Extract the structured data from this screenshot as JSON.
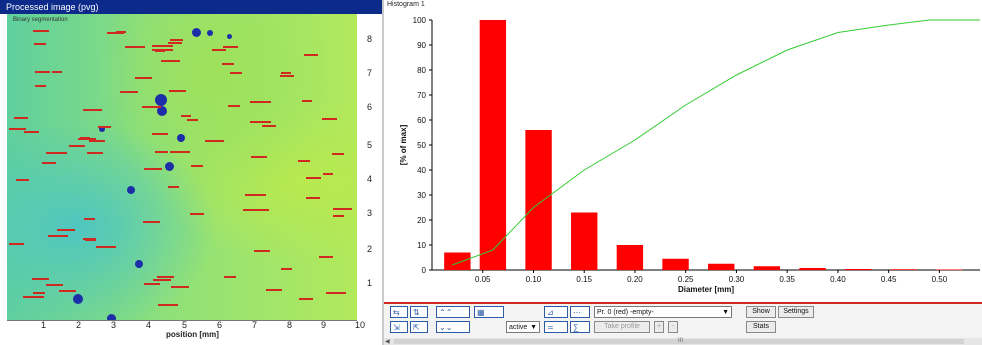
{
  "left_panel": {
    "title": "Processed image (pvg)",
    "note": "Binary segmentation",
    "x_axis_label": "position [mm]",
    "x_ticks": [
      "1",
      "2",
      "3",
      "4",
      "5",
      "6",
      "7",
      "8",
      "9",
      "10"
    ],
    "y_ticks": [
      "8",
      "7",
      "6",
      "5",
      "4",
      "3",
      "2",
      "1"
    ]
  },
  "histogram": {
    "title": "Histogram 1"
  },
  "chart_data": {
    "type": "bar",
    "title": "",
    "xlabel": "Diameter [mm]",
    "ylabel": "[% of max]",
    "ylim": [
      0,
      100
    ],
    "xlim": [
      0,
      0.54
    ],
    "grid": false,
    "x_ticks": [
      "0.05",
      "0.10",
      "0.15",
      "0.20",
      "0.25",
      "0.30",
      "0.35",
      "0.40",
      "0.45",
      "0.50"
    ],
    "y_ticks": [
      "0",
      "10",
      "20",
      "30",
      "40",
      "50",
      "60",
      "70",
      "80",
      "90",
      "100"
    ],
    "bar_color": "#ff0000",
    "curve_color": "#33cc33",
    "bars": [
      {
        "x": 0.025,
        "value": 7
      },
      {
        "x": 0.06,
        "value": 100
      },
      {
        "x": 0.105,
        "value": 56
      },
      {
        "x": 0.15,
        "value": 23
      },
      {
        "x": 0.195,
        "value": 10
      },
      {
        "x": 0.24,
        "value": 4.5
      },
      {
        "x": 0.285,
        "value": 2.5
      },
      {
        "x": 0.33,
        "value": 1.5
      },
      {
        "x": 0.375,
        "value": 0.8
      },
      {
        "x": 0.42,
        "value": 0.4
      },
      {
        "x": 0.465,
        "value": 0.3
      },
      {
        "x": 0.51,
        "value": 0.2
      }
    ],
    "cumulative": [
      {
        "x": 0.02,
        "y": 2
      },
      {
        "x": 0.06,
        "y": 8
      },
      {
        "x": 0.1,
        "y": 25
      },
      {
        "x": 0.15,
        "y": 40
      },
      {
        "x": 0.2,
        "y": 52
      },
      {
        "x": 0.25,
        "y": 66
      },
      {
        "x": 0.3,
        "y": 78
      },
      {
        "x": 0.35,
        "y": 88
      },
      {
        "x": 0.4,
        "y": 95
      },
      {
        "x": 0.45,
        "y": 98
      },
      {
        "x": 0.49,
        "y": 100
      },
      {
        "x": 0.54,
        "y": 100
      }
    ]
  },
  "toolbar": {
    "active_select": "active",
    "profile_select": "Pr. 0 (red) -empty-",
    "take_profile": "Take profile",
    "plus": "+",
    "minus": "-",
    "show": "Show",
    "settings": "Settings",
    "stats": "Stats",
    "icons": [
      "fit-x-icon",
      "fit-y-icon",
      "zoom-in-icon",
      "zoom-out-icon",
      "scale-icon",
      "flip-icon",
      "grid-icon",
      "range-icon",
      "profile-icon",
      "axis-icon"
    ],
    "scroll_grip": "III"
  },
  "colors": {
    "title_bar": "#0b2a8a",
    "annotation": "#d02a20",
    "blob": "#1c2fa8"
  }
}
